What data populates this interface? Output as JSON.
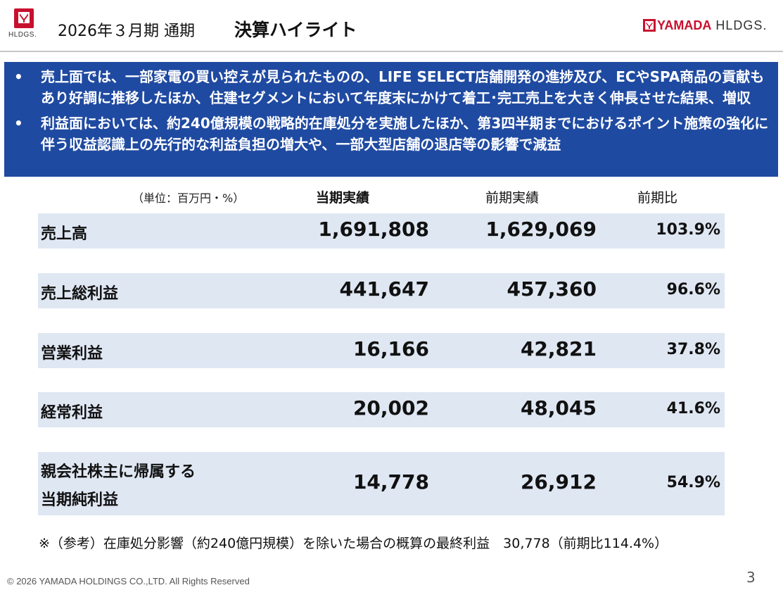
{
  "header": {
    "left_logo_text": "HLDGS.",
    "period": "2026年３月期 通期",
    "title": "決算ハイライト",
    "right_logo_brand": "YAMADA",
    "right_logo_suffix": "HLDGS."
  },
  "summary": {
    "bullets": [
      {
        "marker": "•",
        "text": "売上面では、一部家電の買い控えが見られたものの、LIFE SELECT店舗開発の進捗及び、ECやSPA商品の貢献もあり好調に推移したほか、住建セグメントにおいて年度末にかけて着工･完工売上を大きく伸長させた結果、増収"
      },
      {
        "marker": "•",
        "text": "利益面においては、約240億規模の戦略的在庫処分を実施したほか、第3四半期までにおけるポイント施策の強化に伴う収益認識上の先行的な利益負担の増大や、一部大型店舗の退店等の影響で減益"
      }
    ]
  },
  "table": {
    "unit": "（単位：百万円・%）",
    "col_current": "当期実績",
    "col_previous": "前期実績",
    "col_ratio": "前期比",
    "rows": [
      {
        "label": "売上高",
        "current": "1,691,808",
        "previous": "1,629,069",
        "ratio": "103.9%"
      },
      {
        "label": "売上総利益",
        "current": "441,647",
        "previous": "457,360",
        "ratio": "96.6%"
      },
      {
        "label": "営業利益",
        "current": "16,166",
        "previous": "42,821",
        "ratio": "37.8%"
      },
      {
        "label": "経常利益",
        "current": "20,002",
        "previous": "48,045",
        "ratio": "41.6%"
      },
      {
        "label_line1": "親会社株主に帰属する",
        "label_line2": "当期純利益",
        "current": "14,778",
        "previous": "26,912",
        "ratio": "54.9%"
      }
    ]
  },
  "note": "※（参考）在庫処分影響（約240億円規模）を除いた場合の概算の最終利益　30,778（前期比114.4%）",
  "footer": {
    "copyright": "© 2026 YAMADA HOLDINGS CO.,LTD. All Rights Reserved",
    "page": "3"
  },
  "colors": {
    "brand_red": "#c8102e",
    "summary_blue": "#1f4aa1",
    "row_bg": "#dfe7f3"
  },
  "icons": {
    "left_logo": "yamada-logo-icon",
    "right_logo": "yamada-logo-mark-icon"
  }
}
